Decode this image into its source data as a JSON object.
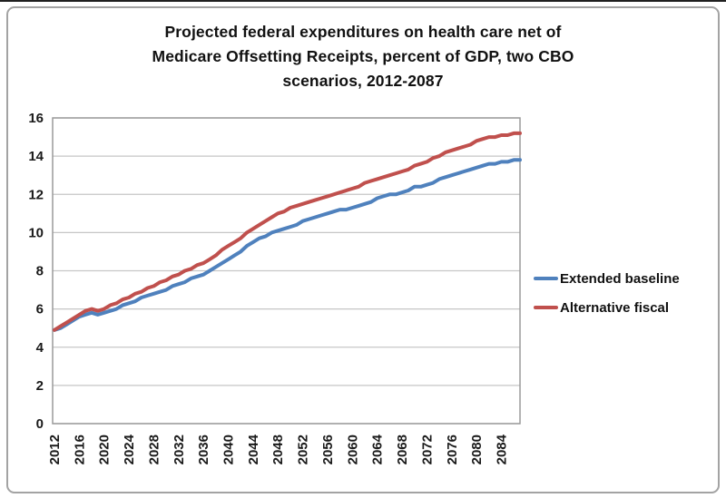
{
  "frame": {
    "background": "#ffffff",
    "border_color": "#a3a3a3"
  },
  "chart_data": {
    "type": "line",
    "title": "Projected federal expenditures on health care net of Medicare Offsetting Receipts, percent of GDP, two CBO scenarios, 2012-2087",
    "title_lines": [
      "Projected federal expenditures on health care net of",
      "Medicare Offsetting Receipts, percent of GDP, two CBO",
      "scenarios, 2012-2087"
    ],
    "xlabel": "",
    "ylabel": "",
    "ylim": [
      0,
      16
    ],
    "ytick_step": 2,
    "yticks": [
      0,
      2,
      4,
      6,
      8,
      10,
      12,
      14,
      16
    ],
    "xticks": [
      2012,
      2016,
      2020,
      2024,
      2028,
      2032,
      2036,
      2040,
      2044,
      2048,
      2052,
      2056,
      2060,
      2064,
      2068,
      2072,
      2076,
      2080,
      2084
    ],
    "grid": "horizontal",
    "gridline_color": "#c6c6c6",
    "axis_color": "#9a9a9a",
    "legend_position": "right",
    "x": [
      2012,
      2013,
      2014,
      2015,
      2016,
      2017,
      2018,
      2019,
      2020,
      2021,
      2022,
      2023,
      2024,
      2025,
      2026,
      2027,
      2028,
      2029,
      2030,
      2031,
      2032,
      2033,
      2034,
      2035,
      2036,
      2037,
      2038,
      2039,
      2040,
      2041,
      2042,
      2043,
      2044,
      2045,
      2046,
      2047,
      2048,
      2049,
      2050,
      2051,
      2052,
      2053,
      2054,
      2055,
      2056,
      2057,
      2058,
      2059,
      2060,
      2061,
      2062,
      2063,
      2064,
      2065,
      2066,
      2067,
      2068,
      2069,
      2070,
      2071,
      2072,
      2073,
      2074,
      2075,
      2076,
      2077,
      2078,
      2079,
      2080,
      2081,
      2082,
      2083,
      2084,
      2085,
      2086,
      2087
    ],
    "series": [
      {
        "name": "Extended baseline",
        "color": "#4F81BD",
        "values": [
          4.9,
          5.0,
          5.2,
          5.4,
          5.6,
          5.7,
          5.8,
          5.7,
          5.8,
          5.9,
          6.0,
          6.2,
          6.3,
          6.4,
          6.6,
          6.7,
          6.8,
          6.9,
          7.0,
          7.2,
          7.3,
          7.4,
          7.6,
          7.7,
          7.8,
          8.0,
          8.2,
          8.4,
          8.6,
          8.8,
          9.0,
          9.3,
          9.5,
          9.7,
          9.8,
          10.0,
          10.1,
          10.2,
          10.3,
          10.4,
          10.6,
          10.7,
          10.8,
          10.9,
          11.0,
          11.1,
          11.2,
          11.2,
          11.3,
          11.4,
          11.5,
          11.6,
          11.8,
          11.9,
          12.0,
          12.0,
          12.1,
          12.2,
          12.4,
          12.4,
          12.5,
          12.6,
          12.8,
          12.9,
          13.0,
          13.1,
          13.2,
          13.3,
          13.4,
          13.5,
          13.6,
          13.6,
          13.7,
          13.7,
          13.8,
          13.8
        ]
      },
      {
        "name": "Alternative fiscal",
        "color": "#C0504D",
        "values": [
          4.9,
          5.1,
          5.3,
          5.5,
          5.7,
          5.9,
          6.0,
          5.9,
          6.0,
          6.2,
          6.3,
          6.5,
          6.6,
          6.8,
          6.9,
          7.1,
          7.2,
          7.4,
          7.5,
          7.7,
          7.8,
          8.0,
          8.1,
          8.3,
          8.4,
          8.6,
          8.8,
          9.1,
          9.3,
          9.5,
          9.7,
          10.0,
          10.2,
          10.4,
          10.6,
          10.8,
          11.0,
          11.1,
          11.3,
          11.4,
          11.5,
          11.6,
          11.7,
          11.8,
          11.9,
          12.0,
          12.1,
          12.2,
          12.3,
          12.4,
          12.6,
          12.7,
          12.8,
          12.9,
          13.0,
          13.1,
          13.2,
          13.3,
          13.5,
          13.6,
          13.7,
          13.9,
          14.0,
          14.2,
          14.3,
          14.4,
          14.5,
          14.6,
          14.8,
          14.9,
          15.0,
          15.0,
          15.1,
          15.1,
          15.2,
          15.2
        ]
      }
    ]
  }
}
